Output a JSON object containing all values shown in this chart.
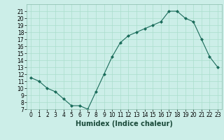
{
  "x": [
    0,
    1,
    2,
    3,
    4,
    5,
    6,
    7,
    8,
    9,
    10,
    11,
    12,
    13,
    14,
    15,
    16,
    17,
    18,
    19,
    20,
    21,
    22,
    23
  ],
  "y": [
    11.5,
    11,
    10,
    9.5,
    8.5,
    7.5,
    7.5,
    7,
    9.5,
    12,
    14.5,
    16.5,
    17.5,
    18,
    18.5,
    19,
    19.5,
    21,
    21,
    20,
    19.5,
    17,
    14.5,
    13
  ],
  "line_color": "#1a6b5a",
  "marker": "D",
  "marker_size": 2,
  "bg_color": "#cceee8",
  "grid_color": "#aaddcc",
  "xlabel": "Humidex (Indice chaleur)",
  "xlim": [
    -0.5,
    23.5
  ],
  "ylim": [
    7,
    22
  ],
  "yticks": [
    7,
    8,
    9,
    10,
    11,
    12,
    13,
    14,
    15,
    16,
    17,
    18,
    19,
    20,
    21
  ],
  "xticks": [
    0,
    1,
    2,
    3,
    4,
    5,
    6,
    7,
    8,
    9,
    10,
    11,
    12,
    13,
    14,
    15,
    16,
    17,
    18,
    19,
    20,
    21,
    22,
    23
  ],
  "tick_fontsize": 5.5,
  "label_fontsize": 7
}
